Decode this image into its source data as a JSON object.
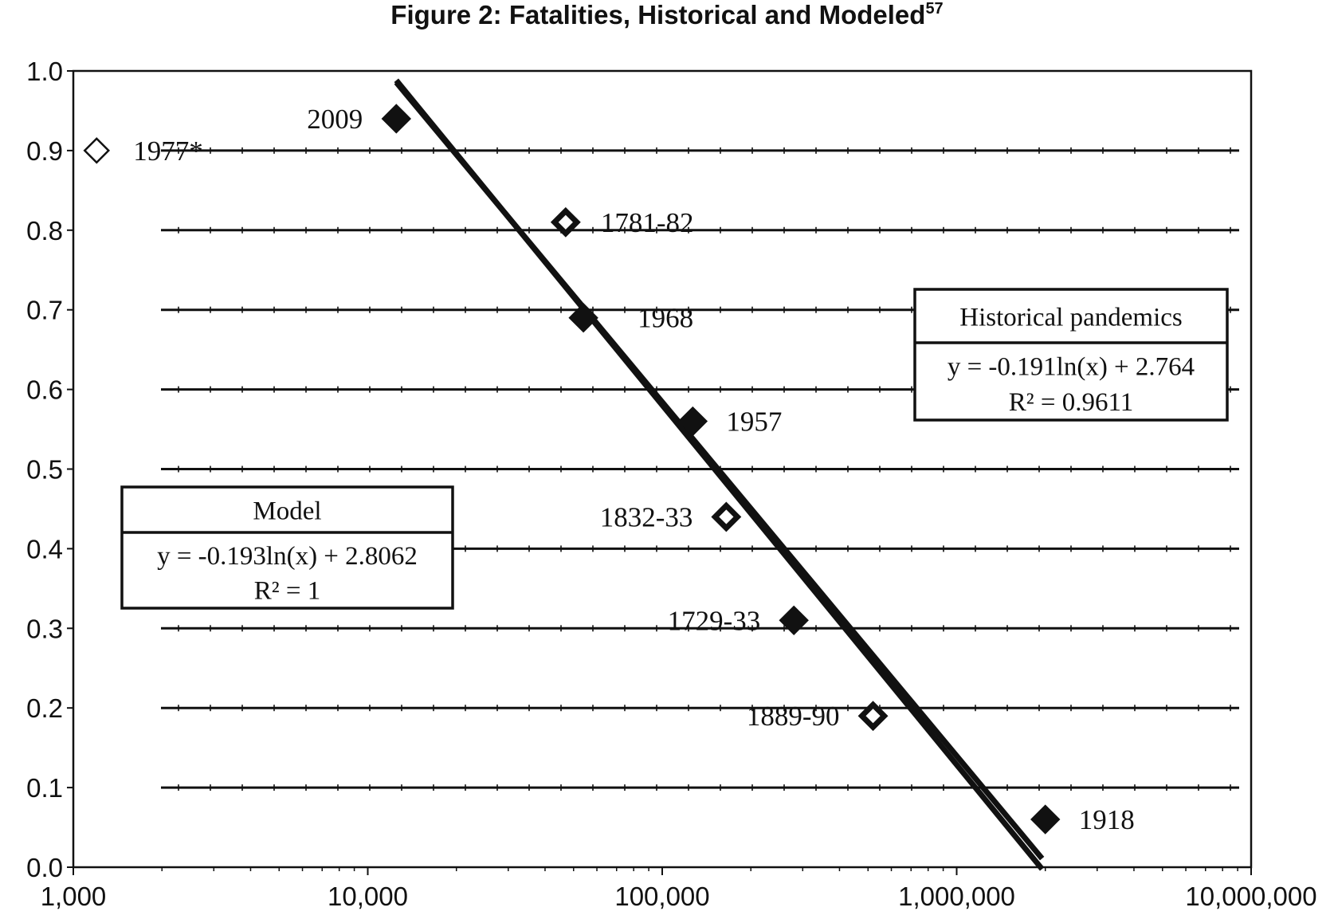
{
  "chart_data": {
    "type": "scatter",
    "title": "Figure 2: Fatalities, Historical and Modeled",
    "title_superscript": "57",
    "xscale": "log",
    "xlim": [
      1000,
      10000000
    ],
    "ylim": [
      0.0,
      1.0
    ],
    "x_ticks": [
      1000,
      10000,
      100000,
      1000000,
      10000000
    ],
    "x_tick_labels": [
      "1,000",
      "10,000",
      "100,000",
      "1,000,000",
      "10,000,000"
    ],
    "y_ticks": [
      0.0,
      0.1,
      0.2,
      0.3,
      0.4,
      0.5,
      0.6,
      0.7,
      0.8,
      0.9,
      1.0
    ],
    "y_tick_labels": [
      "0.0",
      "0.1",
      "0.2",
      "0.3",
      "0.4",
      "0.5",
      "0.6",
      "0.7",
      "0.8",
      "0.9",
      "1.0"
    ],
    "xlabel": "",
    "ylabel": "",
    "grid": "horizontal",
    "points": [
      {
        "label": "2009",
        "x": 12500,
        "y": 0.94,
        "marker": "filled-diamond"
      },
      {
        "label": "1977*",
        "x": 1200,
        "y": 0.9,
        "marker": "open-diamond"
      },
      {
        "label": "1781-82",
        "x": 47000,
        "y": 0.81,
        "marker": "hollow-diamond"
      },
      {
        "label": "1968",
        "x": 54000,
        "y": 0.69,
        "marker": "filled-diamond"
      },
      {
        "label": "1957",
        "x": 127000,
        "y": 0.56,
        "marker": "filled-diamond"
      },
      {
        "label": "1832-33",
        "x": 165000,
        "y": 0.44,
        "marker": "hollow-diamond"
      },
      {
        "label": "1729-33",
        "x": 280000,
        "y": 0.31,
        "marker": "filled-diamond"
      },
      {
        "label": "1889-90",
        "x": 520000,
        "y": 0.19,
        "marker": "hollow-diamond"
      },
      {
        "label": "1918",
        "x": 2000000,
        "y": 0.06,
        "marker": "filled-diamond"
      }
    ],
    "trendlines": [
      {
        "name": "Model",
        "equation": "y = -0.193ln(x) + 2.8062",
        "r2": "R² = 1",
        "slope": -0.193,
        "intercept": 2.8062,
        "x_range": [
          12500,
          1950000
        ]
      },
      {
        "name": "Historical pandemics",
        "equation": "y = -0.191ln(x) + 2.764",
        "r2": "R² = 0.9611",
        "slope": -0.191,
        "intercept": 2.764,
        "x_range": [
          12500,
          1950000
        ]
      }
    ],
    "legend_boxes": [
      {
        "title": "Model",
        "equation": "y = -0.193ln(x) + 2.8062",
        "r2": "R² = 1",
        "placement": "middle-left"
      },
      {
        "title": "Historical pandemics",
        "equation": "y = -0.191ln(x) + 2.764",
        "r2": "R² = 0.9611",
        "placement": "middle-right"
      }
    ]
  }
}
